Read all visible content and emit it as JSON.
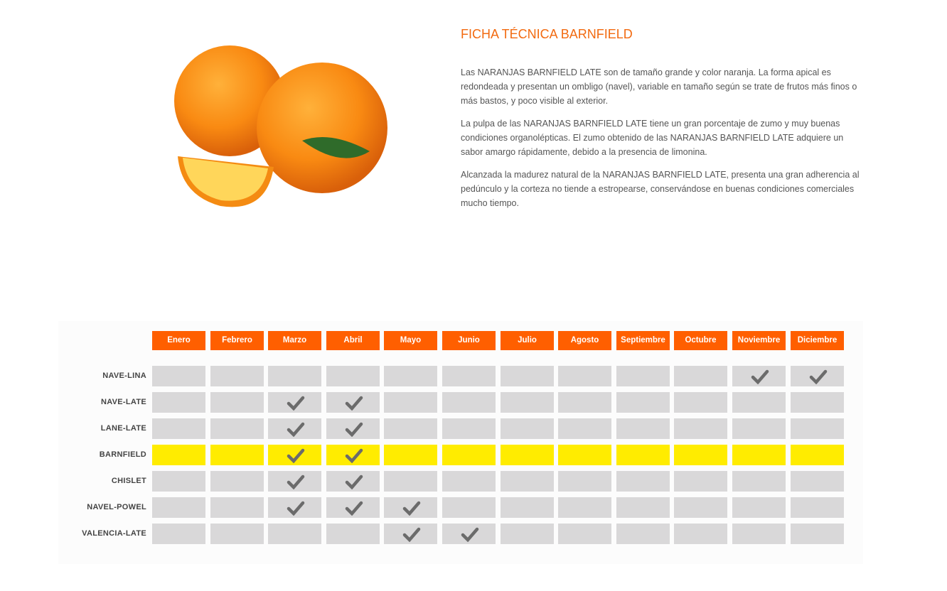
{
  "image": {
    "alt-icon": "oranges-photo"
  },
  "title": "FICHA TÉCNICA BARNFIELD",
  "paragraphs": [
    "Las NARANJAS BARNFIELD LATE son de tamaño grande y color naranja. La forma apical es redondeada y presentan un ombligo (navel), variable en tamaño según se trate de frutos más finos o más bastos, y poco visible al exterior.",
    "La pulpa de las NARANJAS BARNFIELD LATE tiene un gran porcentaje de zumo y muy buenas condiciones organolépticas. El zumo obtenido de las NARANJAS BARNFIELD LATE adquiere un sabor amargo rápidamente, debido a la presencia de limonina.",
    "Alcanzada la madurez natural de la NARANJAS BARNFIELD LATE, presenta una gran adherencia al pedúnculo y la corteza no tiende a estropearse, conservándose en buenas condiciones comerciales mucho tiempo."
  ],
  "colors": {
    "header": "#ff5f00",
    "highlight": "#ffec00",
    "cell": "#d9d8d9",
    "check": "#6b6b6b",
    "title": "#f26a10"
  },
  "calendar": {
    "months": [
      "Enero",
      "Febrero",
      "Marzo",
      "Abril",
      "Mayo",
      "Junio",
      "Julio",
      "Agosto",
      "Septiembre",
      "Octubre",
      "Noviembre",
      "Diciembre"
    ],
    "varieties": [
      {
        "name": "NAVE-LINA",
        "months": [
          11,
          12
        ],
        "highlight": false
      },
      {
        "name": "NAVE-LATE",
        "months": [
          3,
          4
        ],
        "highlight": false
      },
      {
        "name": "LANE-LATE",
        "months": [
          3,
          4
        ],
        "highlight": false
      },
      {
        "name": "BARNFIELD",
        "months": [
          3,
          4
        ],
        "highlight": true
      },
      {
        "name": "CHISLET",
        "months": [
          3,
          4
        ],
        "highlight": false
      },
      {
        "name": "NAVEL-POWEL",
        "months": [
          3,
          4,
          5
        ],
        "highlight": false
      },
      {
        "name": "VALENCIA-LATE",
        "months": [
          5,
          6
        ],
        "highlight": false
      }
    ]
  }
}
